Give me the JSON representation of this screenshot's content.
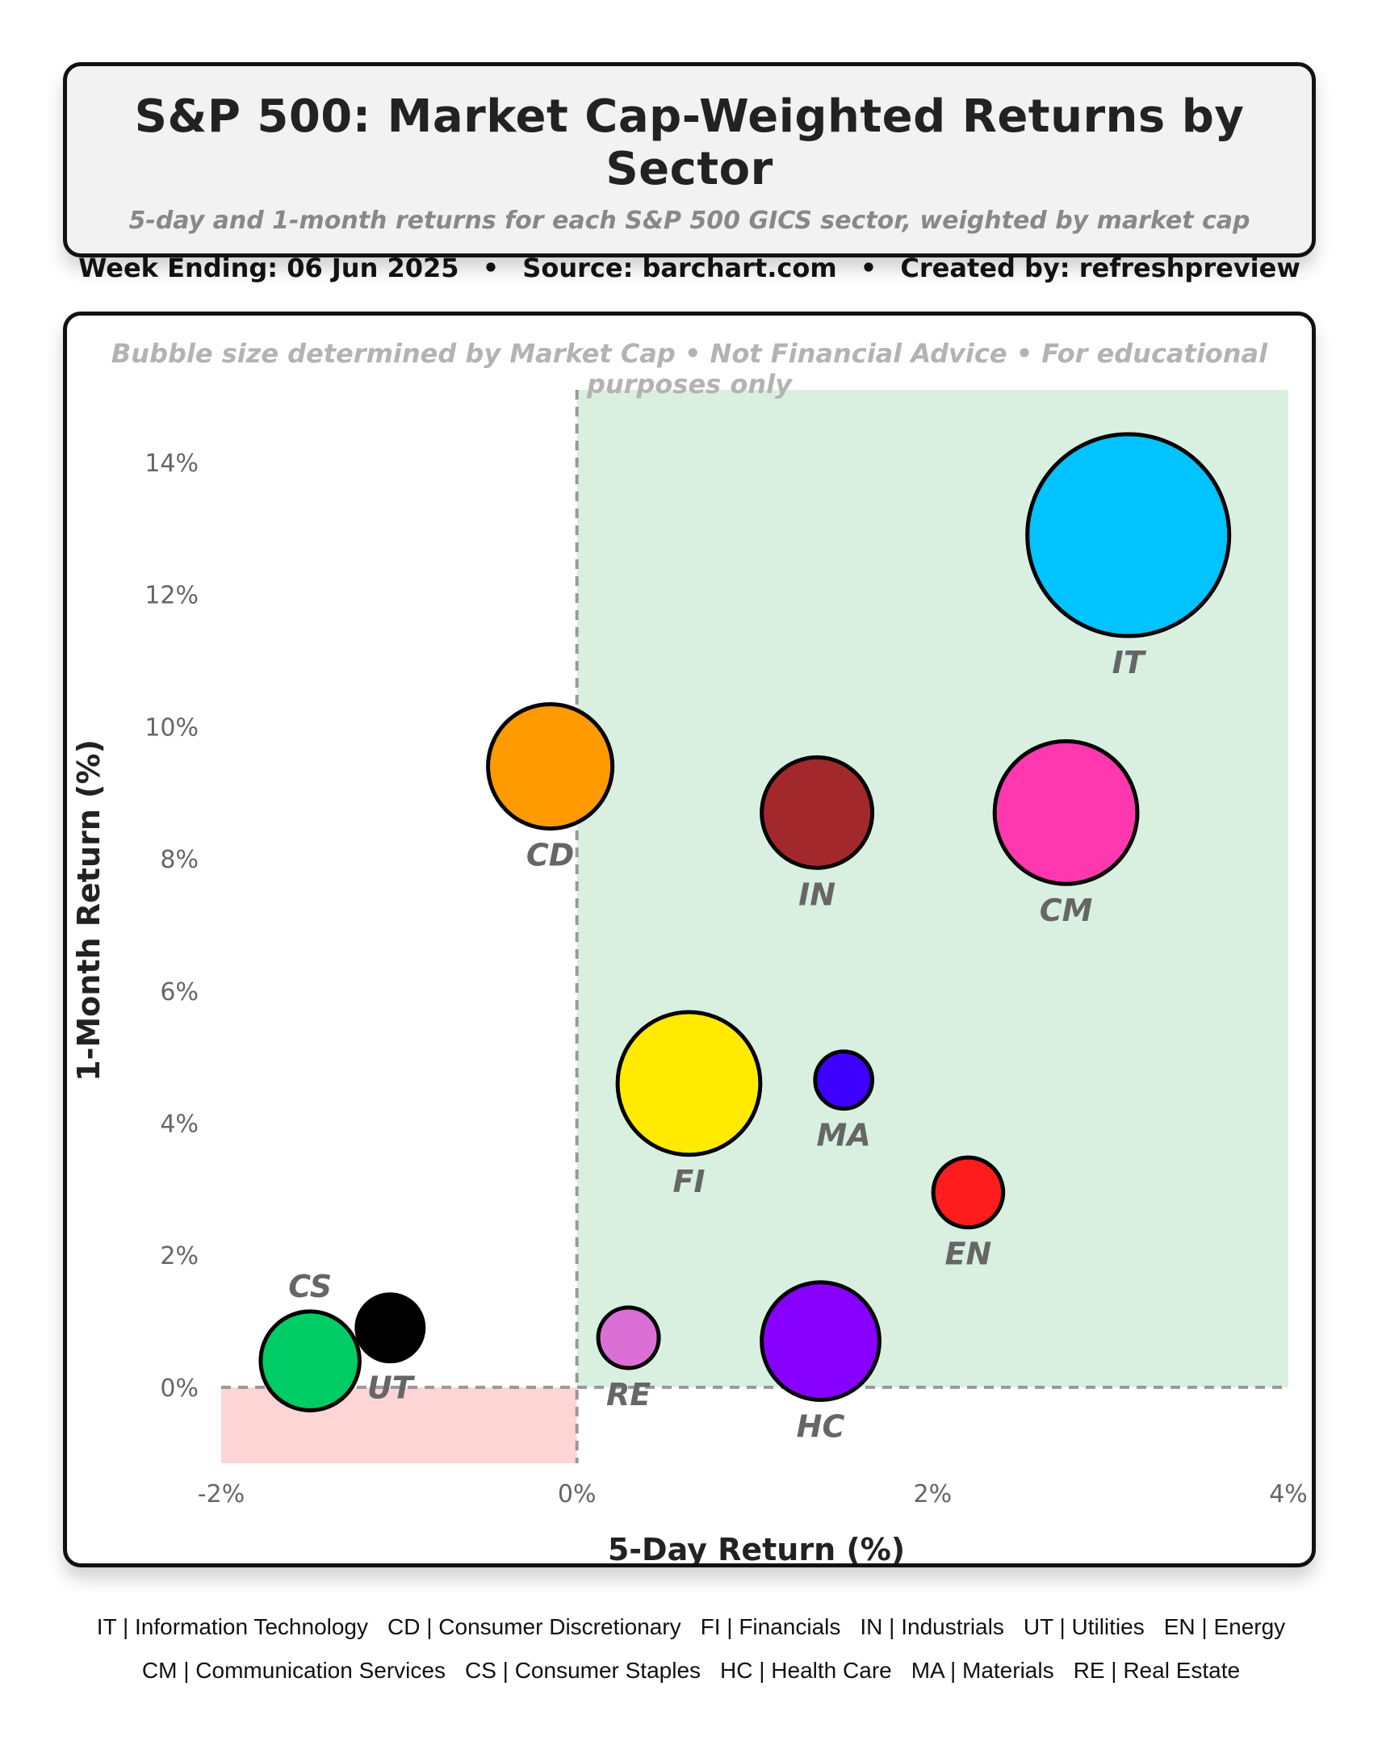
{
  "header": {
    "title": "S&P 500: Market Cap-Weighted Returns by Sector",
    "subtitle": "5-day and 1-month returns for each S&P 500 GICS sector, weighted by market cap",
    "week_ending": "Week Ending: 06 Jun 2025",
    "source": "Source: barchart.com",
    "created_by": "Created by: refreshpreview",
    "separator": "•"
  },
  "disclaimer": "Bubble size determined by Market Cap • Not Financial Advice • For educational purposes only",
  "colors": {
    "positive_region": "#d9f0e1",
    "negative_region": "#fdd5d5",
    "zero_line": "#999999",
    "axis_text": "#666666"
  },
  "chart_data": {
    "type": "scatter",
    "subtype": "bubble",
    "xlabel": "5-Day Return (%)",
    "ylabel": "1-Month Return (%)",
    "xlim": [
      -2,
      4
    ],
    "ylim": [
      -1.15,
      15.1
    ],
    "x_ticks": [
      -2,
      0,
      2,
      4
    ],
    "x_tick_labels": [
      "-2%",
      "0%",
      "2%",
      "4%"
    ],
    "y_ticks": [
      0,
      2,
      4,
      6,
      8,
      10,
      12,
      14
    ],
    "y_tick_labels": [
      "0%",
      "2%",
      "4%",
      "6%",
      "8%",
      "10%",
      "12%",
      "14%"
    ],
    "grid": false,
    "size_encoding": "Market Cap (relative units)",
    "points": [
      {
        "code": "IT",
        "name": "Information Technology",
        "x": 3.1,
        "y": 12.9,
        "size": 100,
        "color": "#00c3ff",
        "label_pos": "below"
      },
      {
        "code": "CD",
        "name": "Consumer Discretionary",
        "x": -0.15,
        "y": 9.4,
        "size": 38,
        "color": "#ff9a00",
        "label_pos": "below"
      },
      {
        "code": "IN",
        "name": "Industrials",
        "x": 1.35,
        "y": 8.7,
        "size": 30,
        "color": "#a3282b",
        "label_pos": "below"
      },
      {
        "code": "CM",
        "name": "Communication Services",
        "x": 2.75,
        "y": 8.7,
        "size": 50,
        "color": "#ff38b0",
        "label_pos": "below"
      },
      {
        "code": "FI",
        "name": "Financials",
        "x": 0.63,
        "y": 4.6,
        "size": 50,
        "color": "#ffea00",
        "label_pos": "below"
      },
      {
        "code": "MA",
        "name": "Materials",
        "x": 1.5,
        "y": 4.65,
        "size": 8,
        "color": "#3e00ff",
        "label_pos": "below"
      },
      {
        "code": "EN",
        "name": "Energy",
        "x": 2.2,
        "y": 2.95,
        "size": 12,
        "color": "#ff1c1c",
        "label_pos": "below"
      },
      {
        "code": "CS",
        "name": "Consumer Staples",
        "x": -1.5,
        "y": 0.4,
        "size": 24,
        "color": "#00cc66",
        "label_pos": "above"
      },
      {
        "code": "UT",
        "name": "Utilities",
        "x": -1.05,
        "y": 0.9,
        "size": 11,
        "color": "#000000",
        "label_pos": "below"
      },
      {
        "code": "RE",
        "name": "Real Estate",
        "x": 0.29,
        "y": 0.75,
        "size": 9,
        "color": "#da70d6",
        "label_pos": "below"
      },
      {
        "code": "HC",
        "name": "Health Care",
        "x": 1.37,
        "y": 0.7,
        "size": 34,
        "color": "#8800ff",
        "label_pos": "below"
      }
    ]
  },
  "legend": {
    "row1": [
      "IT | Information Technology",
      "CD | Consumer Discretionary",
      "FI | Financials",
      "IN | Industrials",
      "UT | Utilities",
      "EN | Energy"
    ],
    "row2": [
      "CM | Communication Services",
      "CS | Consumer Staples",
      "HC | Health Care",
      "MA | Materials",
      "RE | Real Estate"
    ]
  }
}
